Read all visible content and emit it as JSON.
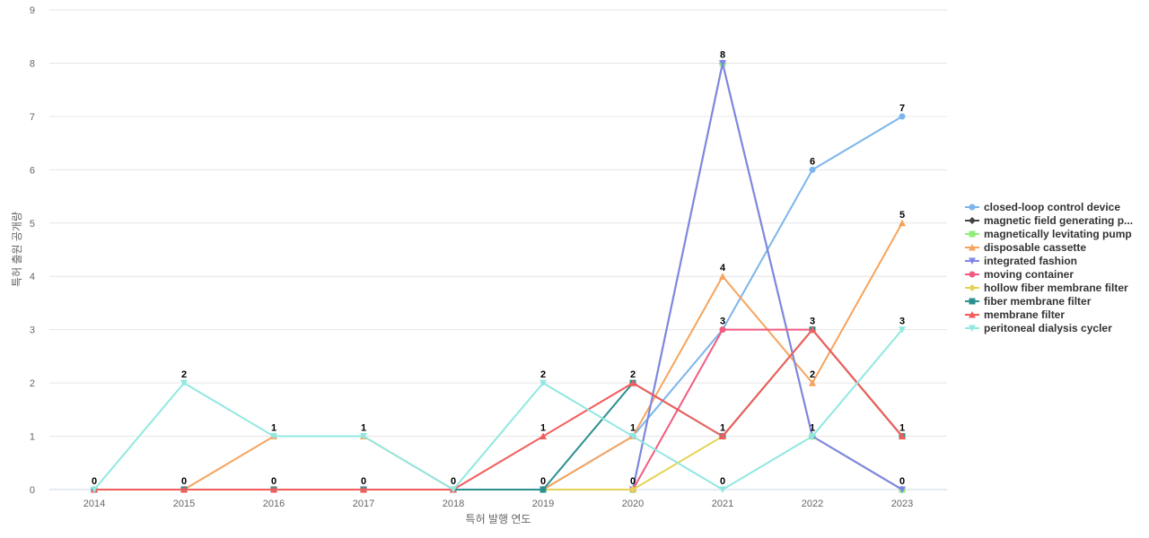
{
  "chart_data": {
    "type": "line",
    "x": [
      "2014",
      "2015",
      "2016",
      "2017",
      "2018",
      "2019",
      "2020",
      "2021",
      "2022",
      "2023"
    ],
    "xlabel": "특허 발행 연도",
    "ylabel": "특허 출원 공개량",
    "ylim": [
      0,
      9
    ],
    "yticks": [
      "0",
      "1",
      "2",
      "3",
      "4",
      "5",
      "6",
      "7",
      "8",
      "9"
    ],
    "grid": true,
    "legend_position": "right",
    "data_labels": [
      {
        "x": "2014",
        "label": "0"
      },
      {
        "x": "2015",
        "label": "0"
      },
      {
        "x": "2015",
        "label": "2"
      },
      {
        "x": "2016",
        "label": "0"
      },
      {
        "x": "2016",
        "label": "1"
      },
      {
        "x": "2017",
        "label": "0"
      },
      {
        "x": "2017",
        "label": "1"
      },
      {
        "x": "2018",
        "label": "0"
      },
      {
        "x": "2019",
        "label": "0"
      },
      {
        "x": "2019",
        "label": "1"
      },
      {
        "x": "2019",
        "label": "2"
      },
      {
        "x": "2020",
        "label": "0"
      },
      {
        "x": "2020",
        "label": "1"
      },
      {
        "x": "2020",
        "label": "2"
      },
      {
        "x": "2021",
        "label": "0"
      },
      {
        "x": "2021",
        "label": "1"
      },
      {
        "x": "2021",
        "label": "3"
      },
      {
        "x": "2021",
        "label": "4"
      },
      {
        "x": "2021",
        "label": "8"
      },
      {
        "x": "2022",
        "label": "1"
      },
      {
        "x": "2022",
        "label": "2"
      },
      {
        "x": "2022",
        "label": "3"
      },
      {
        "x": "2022",
        "label": "6"
      },
      {
        "x": "2023",
        "label": "0"
      },
      {
        "x": "2023",
        "label": "1"
      },
      {
        "x": "2023",
        "label": "3"
      },
      {
        "x": "2023",
        "label": "5"
      },
      {
        "x": "2023",
        "label": "7"
      }
    ],
    "series": [
      {
        "name": "closed-loop control device",
        "color": "#7cb5ec",
        "marker": "circle",
        "values": [
          0,
          0,
          0,
          0,
          0,
          0,
          1,
          3,
          6,
          7
        ]
      },
      {
        "name": "magnetic field generating p...",
        "color": "#434348",
        "marker": "diamond",
        "values": [
          0,
          0,
          0,
          0,
          0,
          0,
          0,
          8,
          1,
          0
        ]
      },
      {
        "name": "magnetically levitating pump",
        "color": "#90ed7d",
        "marker": "square",
        "values": [
          0,
          0,
          0,
          0,
          0,
          0,
          0,
          8,
          1,
          0
        ]
      },
      {
        "name": "disposable cassette",
        "color": "#f7a35c",
        "marker": "triangle",
        "values": [
          0,
          0,
          1,
          1,
          0,
          0,
          1,
          4,
          2,
          5
        ]
      },
      {
        "name": "integrated fashion",
        "color": "#8085e9",
        "marker": "triangle-down",
        "values": [
          0,
          0,
          0,
          0,
          0,
          0,
          0,
          8,
          1,
          0
        ]
      },
      {
        "name": "moving container",
        "color": "#f15c80",
        "marker": "circle",
        "values": [
          0,
          0,
          0,
          0,
          0,
          0,
          0,
          3,
          3,
          1
        ]
      },
      {
        "name": "hollow fiber membrane filter",
        "color": "#e4d354",
        "marker": "diamond",
        "values": [
          0,
          0,
          0,
          0,
          0,
          0,
          0,
          1,
          3,
          1
        ]
      },
      {
        "name": "fiber membrane filter",
        "color": "#2b908f",
        "marker": "square",
        "values": [
          0,
          0,
          0,
          0,
          0,
          0,
          2,
          1,
          3,
          1
        ]
      },
      {
        "name": "membrane filter",
        "color": "#f45b5b",
        "marker": "triangle",
        "values": [
          0,
          0,
          0,
          0,
          0,
          1,
          2,
          1,
          3,
          1
        ]
      },
      {
        "name": "peritoneal dialysis cycler",
        "color": "#91e8e1",
        "marker": "triangle-down",
        "values": [
          0,
          2,
          1,
          1,
          0,
          2,
          1,
          0,
          1,
          3
        ]
      }
    ]
  }
}
